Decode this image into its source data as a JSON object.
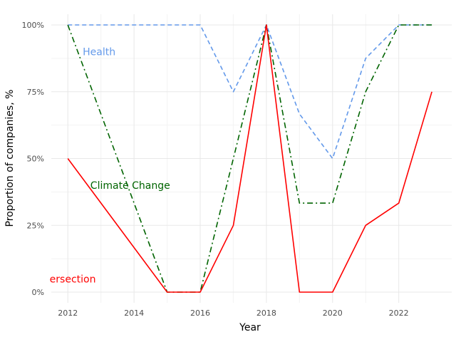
{
  "chart_data": {
    "type": "line",
    "title": "",
    "xlabel": "Year",
    "ylabel": "Proportion of companies, %",
    "xlim": [
      2011.5,
      2023.6
    ],
    "ylim": [
      -0.04,
      1.04
    ],
    "x_ticks": [
      2012,
      2014,
      2016,
      2018,
      2020,
      2022
    ],
    "y_ticks": [
      0,
      0.25,
      0.5,
      0.75,
      1.0
    ],
    "y_tick_labels": [
      "0%",
      "25%",
      "50%",
      "75%",
      "100%"
    ],
    "grid": true,
    "legend": "none",
    "series": [
      {
        "name": "Health",
        "color": "#6399ea",
        "dash": "dashed",
        "x": [
          2012,
          2013,
          2014,
          2015,
          2016,
          2017,
          2018,
          2019,
          2020,
          2021,
          2022,
          2023
        ],
        "values": [
          1.0,
          1.0,
          1.0,
          1.0,
          1.0,
          0.75,
          1.0,
          0.667,
          0.5,
          0.875,
          1.0,
          1.0
        ]
      },
      {
        "name": "Climate Change",
        "color": "#006400",
        "dash": "dashdot",
        "x": [
          2012,
          2015,
          2016,
          2017,
          2018,
          2019,
          2020,
          2021,
          2022,
          2023
        ],
        "values": [
          1.0,
          0.0,
          0.0,
          0.5,
          1.0,
          0.333,
          0.333,
          0.75,
          1.0,
          1.0
        ]
      },
      {
        "name": "ersection",
        "color": "#ff0000",
        "dash": "solid",
        "x": [
          2012,
          2015,
          2016,
          2017,
          2018,
          2019,
          2020,
          2021,
          2022,
          2023
        ],
        "values": [
          0.5,
          0.0,
          0.0,
          0.25,
          1.0,
          0.0,
          0.0,
          0.25,
          0.333,
          0.75
        ]
      }
    ],
    "annotations": [
      {
        "text": "Health",
        "x": 2012.45,
        "y": 0.9,
        "color": "#6399ea"
      },
      {
        "text": "Climate Change",
        "x": 2012.68,
        "y": 0.4,
        "color": "#006400"
      },
      {
        "text": "ersection",
        "x": 2011.45,
        "y": 0.05,
        "color": "#ff0000"
      }
    ]
  }
}
